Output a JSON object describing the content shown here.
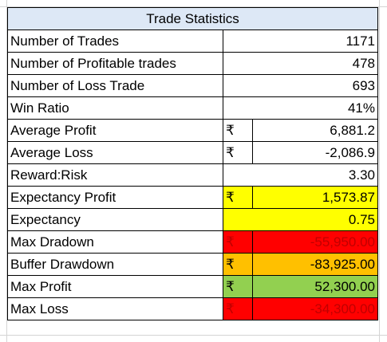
{
  "title": "Trade Statistics",
  "currency_symbol": "₹",
  "rows": [
    {
      "label": "Number of Trades",
      "currency": "",
      "value": "1171"
    },
    {
      "label": "Number of Profitable trades",
      "currency": "",
      "value": "478"
    },
    {
      "label": "Number of Loss Trade",
      "currency": "",
      "value": "693"
    },
    {
      "label": "Win Ratio",
      "currency": "",
      "value": "41%"
    },
    {
      "label": "Average Profit",
      "currency": "₹",
      "value": "6,881.2"
    },
    {
      "label": "Average Loss",
      "currency": "₹",
      "value": "-2,086.9"
    },
    {
      "label": "Reward:Risk",
      "currency": "",
      "value": "3.30"
    },
    {
      "label": "Expectancy Profit",
      "currency": "₹",
      "value": "1,573.87"
    },
    {
      "label": "Expectancy",
      "currency": "",
      "value": "0.75"
    },
    {
      "label": "Max Dradown",
      "currency": "₹",
      "value": "-55,950.00"
    },
    {
      "label": "Buffer Drawdown",
      "currency": "₹",
      "value": "-83,925.00"
    },
    {
      "label": "Max Profit",
      "currency": "₹",
      "value": "52,300.00"
    },
    {
      "label": "Max Loss",
      "currency": "₹",
      "value": "-34,300.00"
    }
  ],
  "colors": {
    "title_bg": "#dde8f6",
    "yellow": "#ffff00",
    "red": "#ff0000",
    "orange": "#ffc000",
    "green": "#92d050",
    "negative_text": "#c00000"
  }
}
